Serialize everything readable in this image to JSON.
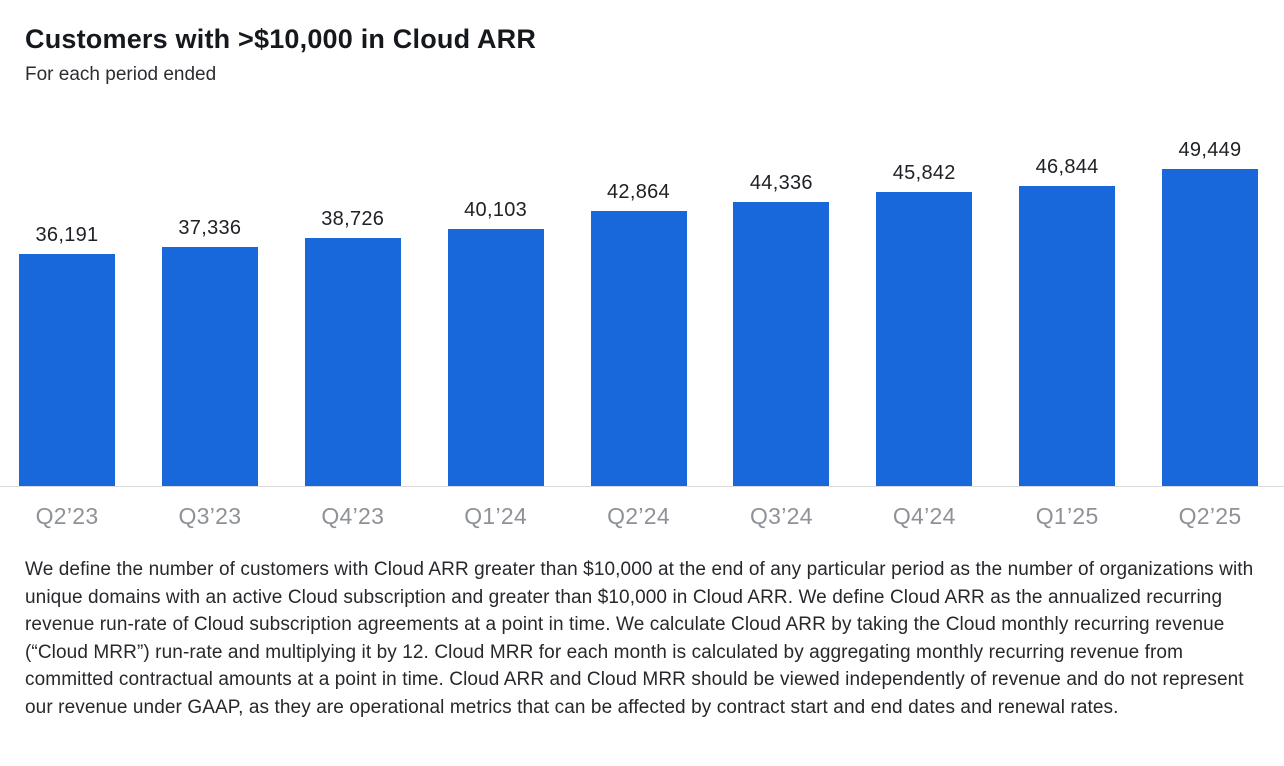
{
  "header": {
    "title": "Customers with >$10,000 in Cloud ARR",
    "subtitle": "For each period ended"
  },
  "chart_data": {
    "type": "bar",
    "title": "Customers with >$10,000 in Cloud ARR",
    "subtitle": "For each period ended",
    "categories": [
      "Q2’23",
      "Q3’23",
      "Q4’23",
      "Q1’24",
      "Q2’24",
      "Q3’24",
      "Q4’24",
      "Q1’25",
      "Q2’25"
    ],
    "values": [
      36191,
      37336,
      38726,
      40103,
      42864,
      44336,
      45842,
      46844,
      49449
    ],
    "value_labels": [
      "36,191",
      "37,336",
      "38,726",
      "40,103",
      "42,864",
      "44,336",
      "45,842",
      "46,844",
      "49,449"
    ],
    "xlabel": "",
    "ylabel": "",
    "ylim": [
      0,
      49449
    ],
    "grid": false,
    "legend_position": "none",
    "data_labels_position": "above-bars",
    "bar_color": "#1868DB",
    "axis_label_color": "#8e9298",
    "baseline_color": "#d8dadd"
  },
  "footnote": {
    "text": "We define the number of customers with Cloud ARR greater than $10,000 at the end of any particular period as the number of organizations with unique domains with an active Cloud subscription and greater than $10,000 in Cloud ARR. We define Cloud ARR as the annualized recurring revenue run-rate of Cloud subscription agreements at a point in time. We calculate Cloud ARR by taking the Cloud monthly recurring revenue (“Cloud MRR”) run-rate and multiplying it by 12. Cloud MRR for each month is calculated by aggregating monthly recurring revenue from committed contractual amounts at a point in time. Cloud ARR and Cloud MRR should be viewed independently of revenue and do not represent our revenue under GAAP, as they are operational metrics that can be affected by contract start and end dates and renewal rates."
  }
}
